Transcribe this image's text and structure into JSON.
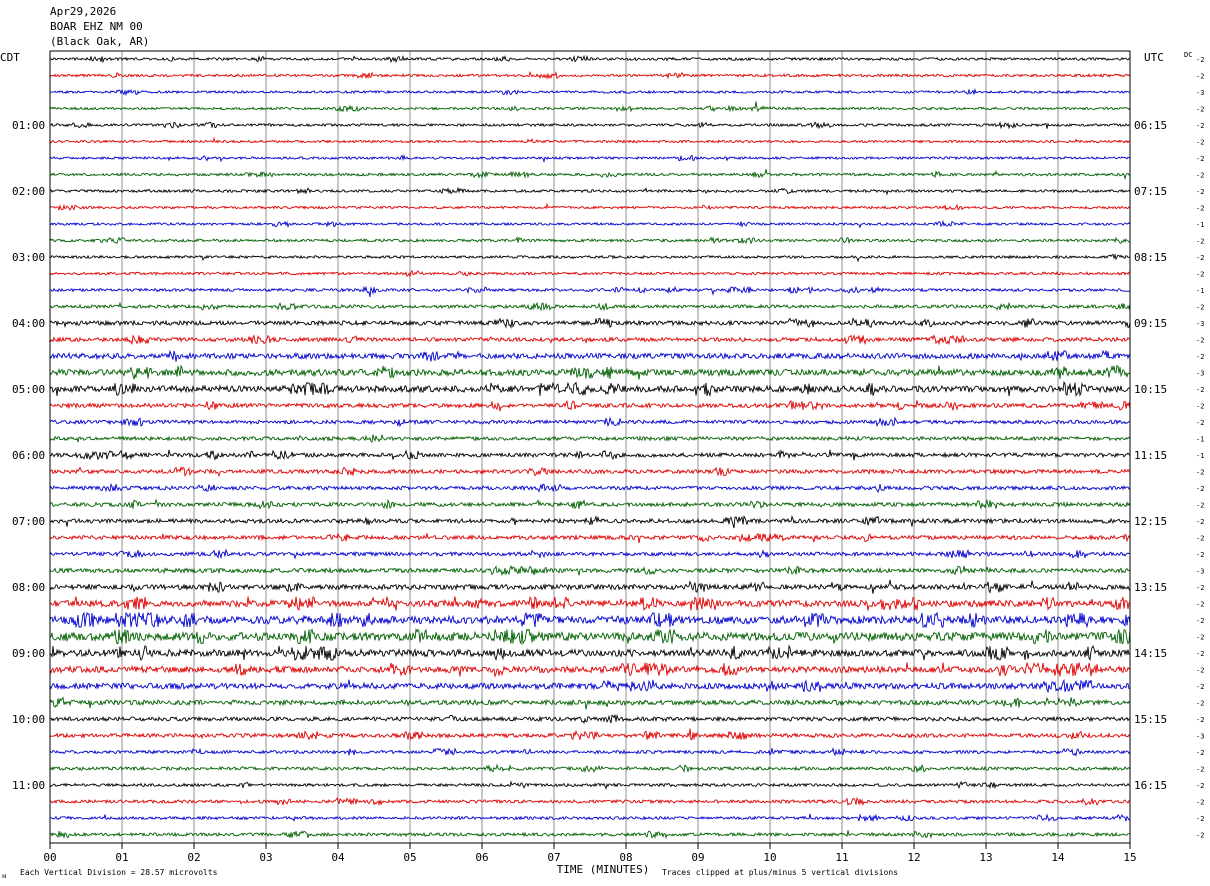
{
  "header": {
    "date": "Apr29,2026",
    "station": "BOAR EHZ NM 00",
    "location": "(Black Oak, AR)"
  },
  "footer": {
    "scale_note": "Each Vertical Division =   28.57 microvolts",
    "xlabel": "TIME (MINUTES)",
    "clip_note": "Traces clipped at plus/minus 5 vertical divisions",
    "corner_mark": "ᴍ"
  },
  "chart_data": {
    "type": "line",
    "subtype": "helicorder",
    "left_axis_label": "CDT",
    "right_axis_label": "UTC",
    "dc_label": "DC",
    "x_ticks": [
      "00",
      "01",
      "02",
      "03",
      "04",
      "05",
      "06",
      "07",
      "08",
      "09",
      "10",
      "11",
      "12",
      "13",
      "14",
      "15"
    ],
    "xlim": [
      0,
      15
    ],
    "trace_count": 48,
    "trace_colors": [
      "#000000",
      "#e00000",
      "#0000d0",
      "#006000"
    ],
    "left_hour_labels": [
      "01:00",
      "02:00",
      "03:00",
      "04:00",
      "05:00",
      "06:00",
      "07:00",
      "08:00",
      "09:00",
      "10:00",
      "11:00"
    ],
    "right_hour_labels": [
      "06:15",
      "07:15",
      "08:15",
      "09:15",
      "10:15",
      "11:15",
      "12:15",
      "13:15",
      "14:15",
      "15:15",
      "16:15"
    ],
    "hour_label_trace_indices": [
      4,
      8,
      12,
      16,
      20,
      24,
      28,
      32,
      36,
      40,
      44
    ],
    "first_trace_left_label": "CDT",
    "first_trace_right_label": "UTC",
    "dc_offsets": [
      -2,
      -2,
      -3,
      -2,
      -2,
      -2,
      -2,
      -2,
      -2,
      -2,
      -1,
      -2,
      -2,
      -2,
      -1,
      -2,
      -3,
      -2,
      -2,
      -3,
      -2,
      -2,
      -2,
      -1,
      -1,
      -2,
      -2,
      -2,
      -2,
      -2,
      -2,
      -3,
      -2,
      -2,
      -2,
      -2,
      -2,
      -2,
      -2,
      -2,
      -2,
      -3,
      -2,
      -2,
      -2,
      -2,
      -2,
      -2
    ],
    "activity": [
      1.0,
      1.0,
      0.9,
      0.9,
      1.0,
      0.9,
      0.9,
      1.0,
      1.0,
      0.9,
      0.9,
      1.0,
      1.0,
      1.0,
      1.1,
      1.2,
      1.6,
      1.5,
      2.0,
      2.4,
      2.4,
      1.6,
      1.4,
      1.4,
      1.5,
      1.5,
      1.4,
      1.5,
      1.6,
      1.5,
      1.4,
      1.6,
      1.9,
      2.4,
      3.0,
      3.2,
      2.6,
      2.4,
      2.2,
      1.8,
      1.5,
      1.5,
      1.2,
      1.2,
      1.1,
      1.2,
      1.1,
      1.2
    ]
  }
}
